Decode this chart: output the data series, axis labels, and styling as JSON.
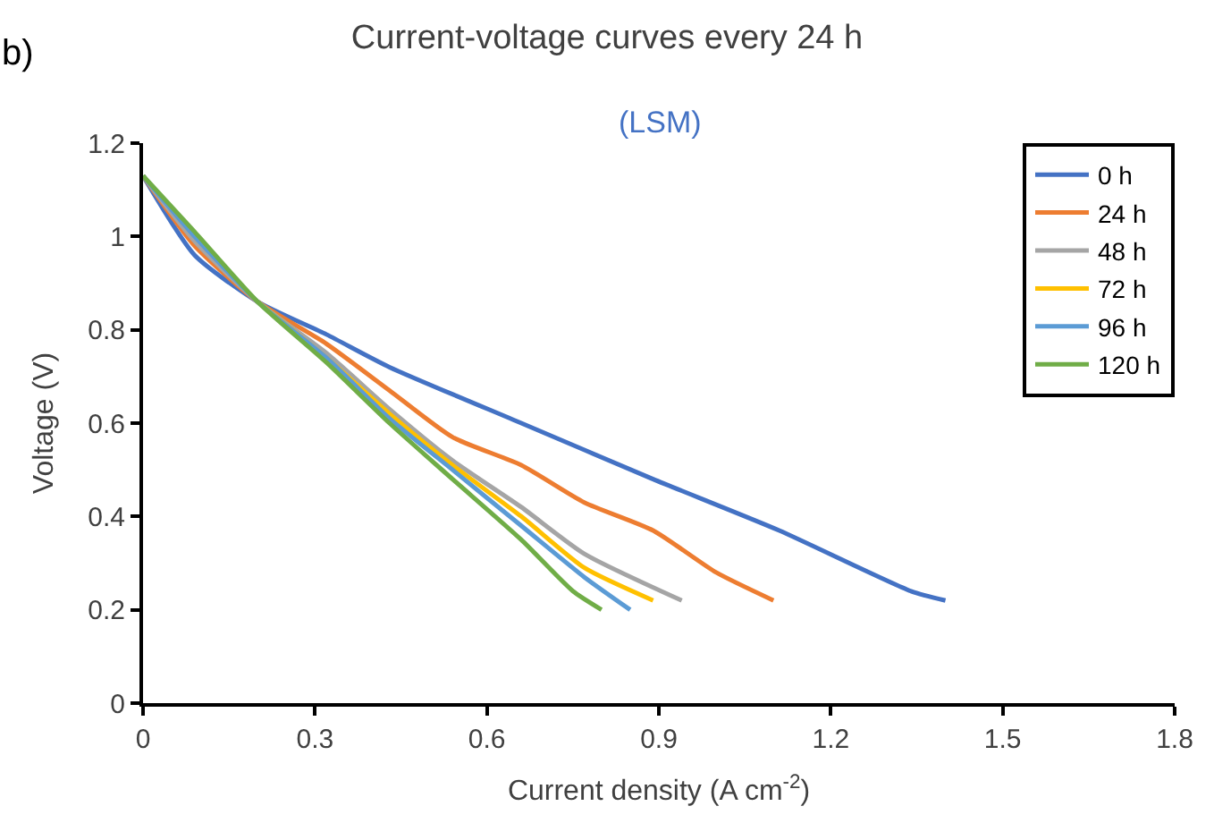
{
  "chart_data": {
    "type": "line",
    "title": "Current-voltage curves every 24 h",
    "subtitle": "(LSM)",
    "xlabel": "Current density (A cm$^{-2}$)",
    "ylabel": "Voltage (V)",
    "annotations": [
      "b)"
    ],
    "xlim": [
      0,
      1.8
    ],
    "xticks": [
      0,
      0.3,
      0.6,
      0.9,
      1.2,
      1.5,
      1.8
    ],
    "ylim": [
      0,
      1.2
    ],
    "yticks": [
      0,
      0.2,
      0.4,
      0.6,
      0.8,
      1,
      1.2
    ],
    "grid": false,
    "legend": "top right",
    "marker": "none",
    "line_style": "solid",
    "series": [
      {
        "name": "0 h",
        "color": "#4472c4",
        "x": [
          0,
          0.09,
          0.2,
          0.32,
          0.43,
          0.66,
          0.89,
          1.11,
          1.34,
          1.4
        ],
        "values": [
          1.13,
          0.96,
          0.86,
          0.79,
          0.72,
          0.6,
          0.48,
          0.37,
          0.24,
          0.22
        ]
      },
      {
        "name": "24 h",
        "color": "#ed7d31",
        "x": [
          0,
          0.09,
          0.2,
          0.32,
          0.43,
          0.54,
          0.66,
          0.77,
          0.89,
          1.0,
          1.1
        ],
        "values": [
          1.13,
          0.98,
          0.86,
          0.77,
          0.67,
          0.57,
          0.51,
          0.43,
          0.37,
          0.28,
          0.22
        ]
      },
      {
        "name": "48 h",
        "color": "#a5a5a5",
        "x": [
          0,
          0.09,
          0.2,
          0.32,
          0.43,
          0.54,
          0.66,
          0.77,
          0.94
        ],
        "values": [
          1.13,
          0.99,
          0.86,
          0.75,
          0.63,
          0.52,
          0.42,
          0.32,
          0.22
        ]
      },
      {
        "name": "72 h",
        "color": "#ffc000",
        "x": [
          0.2,
          0.32,
          0.43,
          0.54,
          0.66,
          0.77,
          0.89
        ],
        "values": [
          0.86,
          0.74,
          0.62,
          0.51,
          0.4,
          0.29,
          0.22
        ]
      },
      {
        "name": "96 h",
        "color": "#5b9bd5",
        "x": [
          0,
          0.09,
          0.2,
          0.32,
          0.43,
          0.54,
          0.66,
          0.77,
          0.85
        ],
        "values": [
          1.13,
          1.0,
          0.86,
          0.74,
          0.61,
          0.5,
          0.38,
          0.27,
          0.2
        ]
      },
      {
        "name": "120 h",
        "color": "#70ad47",
        "x": [
          0,
          0.09,
          0.2,
          0.32,
          0.43,
          0.54,
          0.66,
          0.75,
          0.8
        ],
        "values": [
          1.13,
          1.01,
          0.86,
          0.73,
          0.6,
          0.48,
          0.35,
          0.24,
          0.2
        ]
      }
    ]
  }
}
